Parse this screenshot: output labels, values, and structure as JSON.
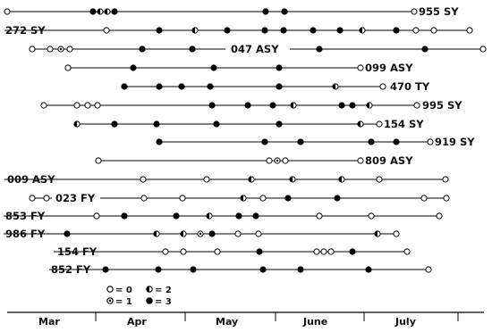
{
  "legend": [
    {
      "code": 0,
      "text": "= 0"
    },
    {
      "code": 1,
      "text": "= 1"
    },
    {
      "code": 2,
      "text": "= 2"
    },
    {
      "code": 3,
      "text": "= 3"
    }
  ],
  "months": [
    "Mar",
    "Apr",
    "May",
    "June",
    "July"
  ],
  "rows": [
    {
      "label": "955 SY",
      "x0": 8,
      "x1": 464,
      "labelAfterX": 464,
      "points": [
        [
          8,
          0
        ],
        [
          104,
          3
        ],
        [
          112,
          2
        ],
        [
          120,
          2
        ],
        [
          128,
          3
        ],
        [
          297,
          3
        ],
        [
          318,
          3
        ],
        [
          463,
          0
        ]
      ]
    },
    {
      "label": "272 SY",
      "x0": 119,
      "x1": 526,
      "points": [
        [
          119,
          0
        ],
        [
          178,
          3
        ],
        [
          218,
          2
        ],
        [
          254,
          3
        ],
        [
          296,
          3
        ],
        [
          317,
          3
        ],
        [
          350,
          3
        ],
        [
          380,
          3
        ],
        [
          405,
          2
        ],
        [
          443,
          3
        ],
        [
          465,
          0
        ],
        [
          485,
          0
        ],
        [
          525,
          0
        ]
      ]
    },
    {
      "label": "047 ASY",
      "x0": 36,
      "x1": 541,
      "points": [
        [
          36,
          0
        ],
        [
          56,
          0
        ],
        [
          68,
          1
        ],
        [
          78,
          0
        ],
        [
          159,
          3
        ],
        [
          215,
          3
        ],
        [
          357,
          3
        ],
        [
          475,
          3
        ],
        [
          540,
          0
        ]
      ]
    },
    {
      "label": "099 ASY",
      "x0": 76,
      "x1": 403,
      "points": [
        [
          76,
          0
        ],
        [
          149,
          3
        ],
        [
          239,
          3
        ],
        [
          312,
          3
        ],
        [
          403,
          0
        ]
      ]
    },
    {
      "label": "470 TY",
      "x0": 139,
      "x1": 428,
      "points": [
        [
          139,
          3
        ],
        [
          178,
          3
        ],
        [
          203,
          3
        ],
        [
          235,
          3
        ],
        [
          312,
          3
        ],
        [
          375,
          2
        ],
        [
          428,
          0
        ]
      ]
    },
    {
      "label": "995 SY",
      "x0": 49,
      "x1": 466,
      "points": [
        [
          49,
          0
        ],
        [
          86,
          0
        ],
        [
          98,
          0
        ],
        [
          109,
          0
        ],
        [
          237,
          3
        ],
        [
          277,
          3
        ],
        [
          305,
          3
        ],
        [
          328,
          2
        ],
        [
          382,
          3
        ],
        [
          394,
          3
        ],
        [
          413,
          2
        ],
        [
          466,
          0
        ]
      ]
    },
    {
      "label": "154 SY",
      "x0": 86,
      "x1": 424,
      "points": [
        [
          86,
          2
        ],
        [
          128,
          3
        ],
        [
          175,
          3
        ],
        [
          242,
          3
        ],
        [
          312,
          3
        ],
        [
          403,
          2
        ],
        [
          424,
          0
        ]
      ]
    },
    {
      "label": "919 SY",
      "x0": 178,
      "x1": 481,
      "points": [
        [
          178,
          3
        ],
        [
          296,
          3
        ],
        [
          336,
          3
        ],
        [
          415,
          3
        ],
        [
          443,
          3
        ],
        [
          481,
          0
        ]
      ]
    },
    {
      "label": "809 ASY",
      "x0": 110,
      "x1": 403,
      "points": [
        [
          110,
          0
        ],
        [
          301,
          0
        ],
        [
          310,
          1
        ],
        [
          319,
          0
        ],
        [
          403,
          0
        ]
      ]
    },
    {
      "label": "009 ASY",
      "x0": 160,
      "x1": 498,
      "points": [
        [
          160,
          0
        ],
        [
          231,
          0
        ],
        [
          281,
          2
        ],
        [
          327,
          2
        ],
        [
          382,
          2
        ],
        [
          424,
          0
        ],
        [
          498,
          0
        ]
      ]
    },
    {
      "label": "023 FY",
      "x0": 36,
      "x1": 499,
      "points": [
        [
          36,
          0
        ],
        [
          52,
          0
        ],
        [
          161,
          0
        ],
        [
          204,
          0
        ],
        [
          272,
          2
        ],
        [
          294,
          0
        ],
        [
          322,
          3
        ],
        [
          377,
          3
        ],
        [
          474,
          0
        ],
        [
          499,
          0
        ]
      ]
    },
    {
      "label": "853 FY",
      "x0": 108,
      "x1": 491,
      "points": [
        [
          108,
          0
        ],
        [
          139,
          3
        ],
        [
          197,
          3
        ],
        [
          234,
          2
        ],
        [
          267,
          3
        ],
        [
          286,
          3
        ],
        [
          357,
          0
        ],
        [
          415,
          0
        ],
        [
          491,
          0
        ]
      ]
    },
    {
      "label": "986 FY",
      "x0": 75,
      "x1": 443,
      "points": [
        [
          75,
          3
        ],
        [
          175,
          2
        ],
        [
          205,
          2
        ],
        [
          224,
          1
        ],
        [
          237,
          3
        ],
        [
          266,
          0
        ],
        [
          289,
          0
        ],
        [
          422,
          2
        ],
        [
          443,
          0
        ]
      ]
    },
    {
      "label": "154 FY",
      "x0": 185,
      "x1": 455,
      "points": [
        [
          185,
          0
        ],
        [
          205,
          0
        ],
        [
          243,
          0
        ],
        [
          290,
          3
        ],
        [
          354,
          0
        ],
        [
          362,
          0
        ],
        [
          370,
          0
        ],
        [
          394,
          3
        ],
        [
          455,
          0
        ]
      ]
    },
    {
      "label": "852 FY",
      "x0": 118,
      "x1": 479,
      "points": [
        [
          118,
          3
        ],
        [
          177,
          3
        ],
        [
          216,
          3
        ],
        [
          294,
          3
        ],
        [
          336,
          3
        ],
        [
          412,
          3
        ],
        [
          479,
          0
        ]
      ]
    }
  ]
}
